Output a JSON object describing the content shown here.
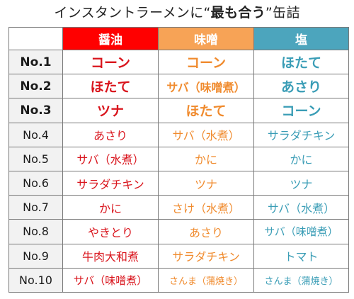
{
  "title": {
    "prefix": "インスタントラーメンに",
    "open_quote": "“",
    "emphasis": "最も合う",
    "close_quote": "”",
    "suffix": "缶詰"
  },
  "columns": [
    {
      "label": "醤油",
      "color": "#ff0000"
    },
    {
      "label": "味噌",
      "color": "#f7a356"
    },
    {
      "label": "塩",
      "color": "#4ca5bd"
    }
  ],
  "rows": [
    {
      "rank": "No.1",
      "shoyu": "コーン",
      "miso": "コーン",
      "shio": "ほたて"
    },
    {
      "rank": "No.2",
      "shoyu": "ほたて",
      "miso": "サバ（味噌煮）",
      "shio": "あさり"
    },
    {
      "rank": "No.3",
      "shoyu": "ツナ",
      "miso": "ほたて",
      "shio": "コーン"
    },
    {
      "rank": "No.4",
      "shoyu": "あさり",
      "miso": "サバ（水煮）",
      "shio": "サラダチキン"
    },
    {
      "rank": "No.5",
      "shoyu": "サバ（水煮）",
      "miso": "かに",
      "shio": "かに"
    },
    {
      "rank": "No.6",
      "shoyu": "サラダチキン",
      "miso": "ツナ",
      "shio": "ツナ"
    },
    {
      "rank": "No.7",
      "shoyu": "かに",
      "miso": "さけ（水煮）",
      "shio": "サバ（水煮）"
    },
    {
      "rank": "No.8",
      "shoyu": "やきとり",
      "miso": "あさり",
      "shio": "サバ（味噌煮）"
    },
    {
      "rank": "No.9",
      "shoyu": "牛肉大和煮",
      "miso": "サラダチキン",
      "shio": "トマト"
    },
    {
      "rank": "No.10",
      "shoyu": "サバ（味噌煮）",
      "miso": "さんま（蒲焼き）",
      "shio": "さんま（蒲焼き）"
    }
  ],
  "text_colors": {
    "shoyu": "#d9141c",
    "miso": "#f08b2e",
    "shio": "#3a9db6",
    "rank_bg": "#f2f2f2"
  }
}
